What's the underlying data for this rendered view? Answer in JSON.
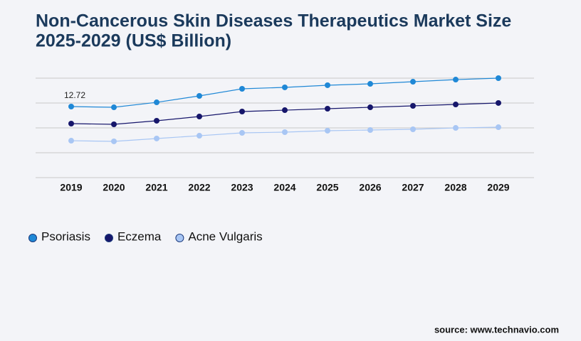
{
  "chart_data": {
    "type": "line",
    "title": "Non-Cancerous Skin Diseases Therapeutics Market Size",
    "subtitle": "2025-2029 (US$ Billion)",
    "categories": [
      "2019",
      "2020",
      "2021",
      "2022",
      "2023",
      "2024",
      "2025",
      "2026",
      "2027",
      "2028",
      "2029"
    ],
    "series": [
      {
        "name": "Psoriasis",
        "color": "#1f88d6",
        "values": [
          12.72,
          12.59,
          13.48,
          14.63,
          15.9,
          16.16,
          16.54,
          16.79,
          17.17,
          17.55,
          17.81
        ]
      },
      {
        "name": "Eczema",
        "color": "#16166b",
        "values": [
          9.67,
          9.54,
          10.18,
          10.94,
          11.83,
          12.08,
          12.34,
          12.59,
          12.85,
          13.1,
          13.36
        ]
      },
      {
        "name": "Acne Vulgaris",
        "color": "#a8c6f4",
        "values": [
          6.61,
          6.49,
          7.0,
          7.5,
          8.01,
          8.14,
          8.4,
          8.52,
          8.65,
          8.9,
          9.03
        ]
      }
    ],
    "ylim": [
      0,
      17.81
    ],
    "grid": true,
    "source": "source: www.technavio.com"
  }
}
